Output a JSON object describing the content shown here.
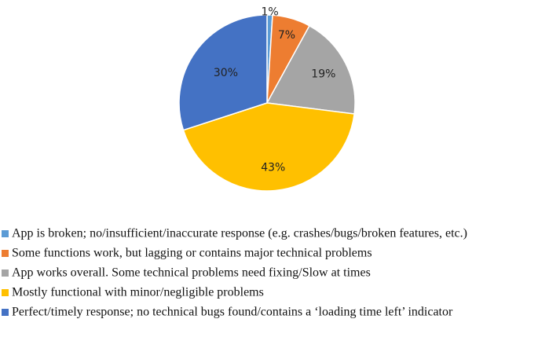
{
  "chart_data": {
    "type": "pie",
    "title": "",
    "slices": [
      {
        "label": "App is broken; no/insufficient/inaccurate response (e.g. crashes/bugs/broken features, etc.)",
        "value": 1,
        "display": "1%",
        "color": "#5b9bd5"
      },
      {
        "label": "Some functions work, but lagging or contains major technical problems",
        "value": 7,
        "display": "7%",
        "color": "#ed7d31"
      },
      {
        "label": "App works overall. Some technical problems need fixing/Slow at times",
        "value": 19,
        "display": "19%",
        "color": "#a5a5a5"
      },
      {
        "label": "Mostly functional with minor/negligible problems",
        "value": 43,
        "display": "43%",
        "color": "#ffc000"
      },
      {
        "label": "Perfect/timely response; no technical bugs found/contains a ‘loading time left’ indicator",
        "value": 30,
        "display": "30%",
        "color": "#4472c4"
      }
    ],
    "legend_position": "bottom"
  }
}
